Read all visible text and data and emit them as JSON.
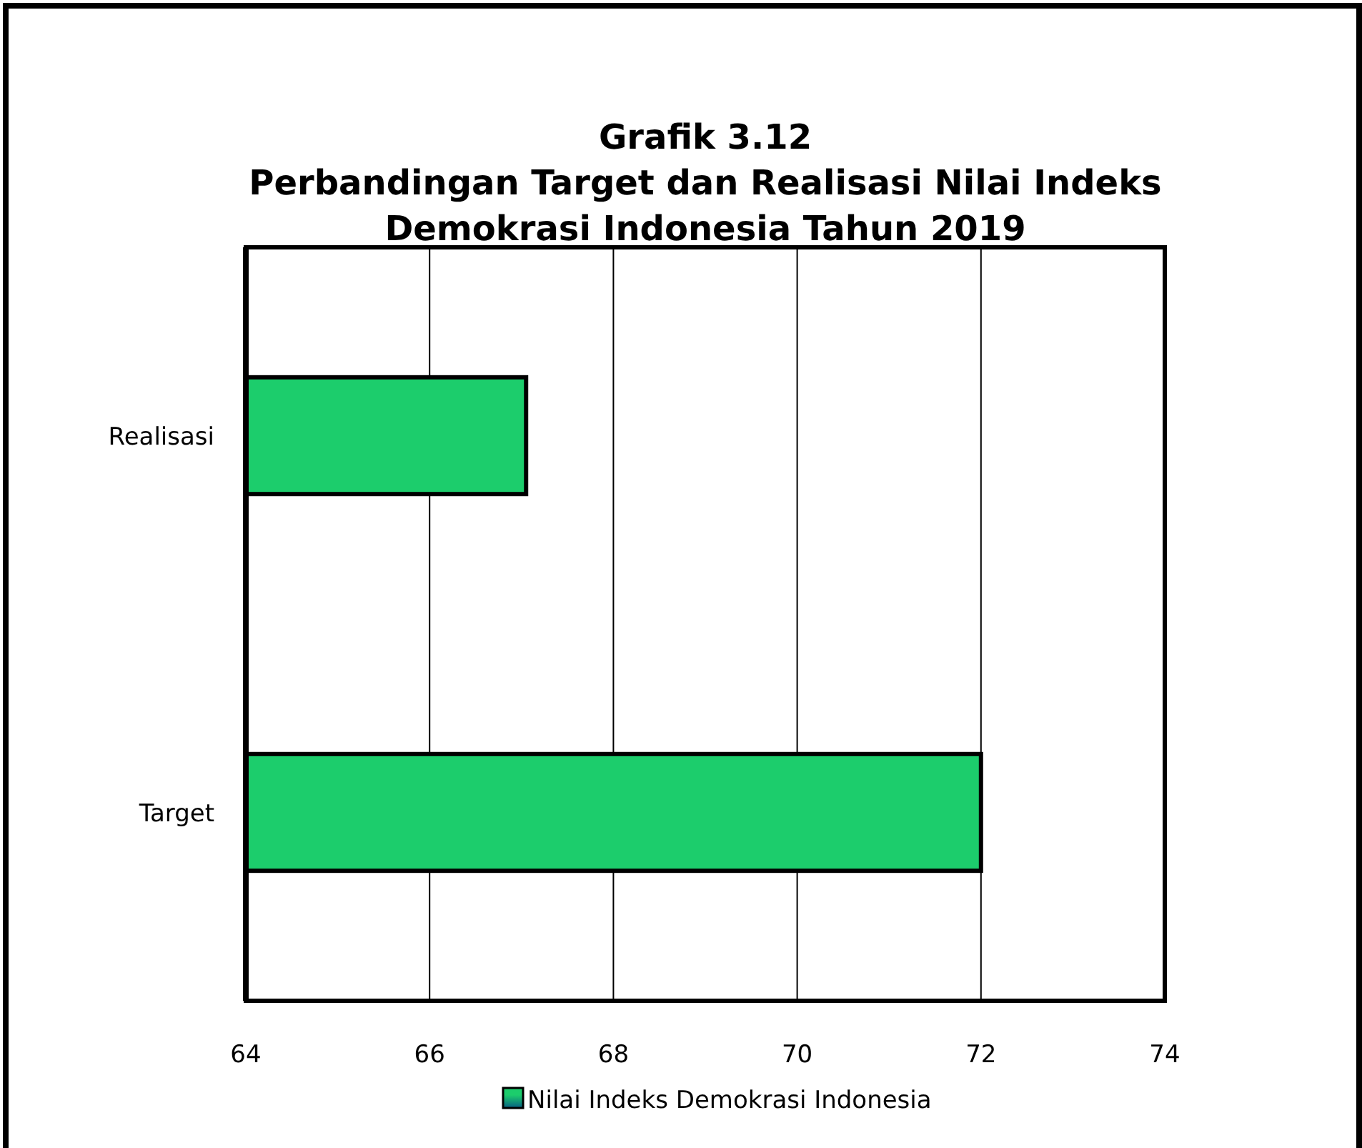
{
  "chart_data": {
    "type": "bar",
    "orientation": "horizontal",
    "title": "Grafik 3.12\nPerbandingan Target dan Realisasi Nilai Indeks\nDemokrasi Indonesia Tahun 2019",
    "categories": [
      "Realisasi",
      "Target"
    ],
    "series": [
      {
        "name": "Nilai Indeks Demokrasi Indonesia",
        "color": "#1ccd6c",
        "values": [
          67.05,
          72
        ]
      }
    ],
    "xlim": [
      64,
      74
    ],
    "xticks": [
      64,
      66,
      68,
      70,
      72,
      74
    ],
    "grid": "x",
    "legend": "bottom"
  }
}
